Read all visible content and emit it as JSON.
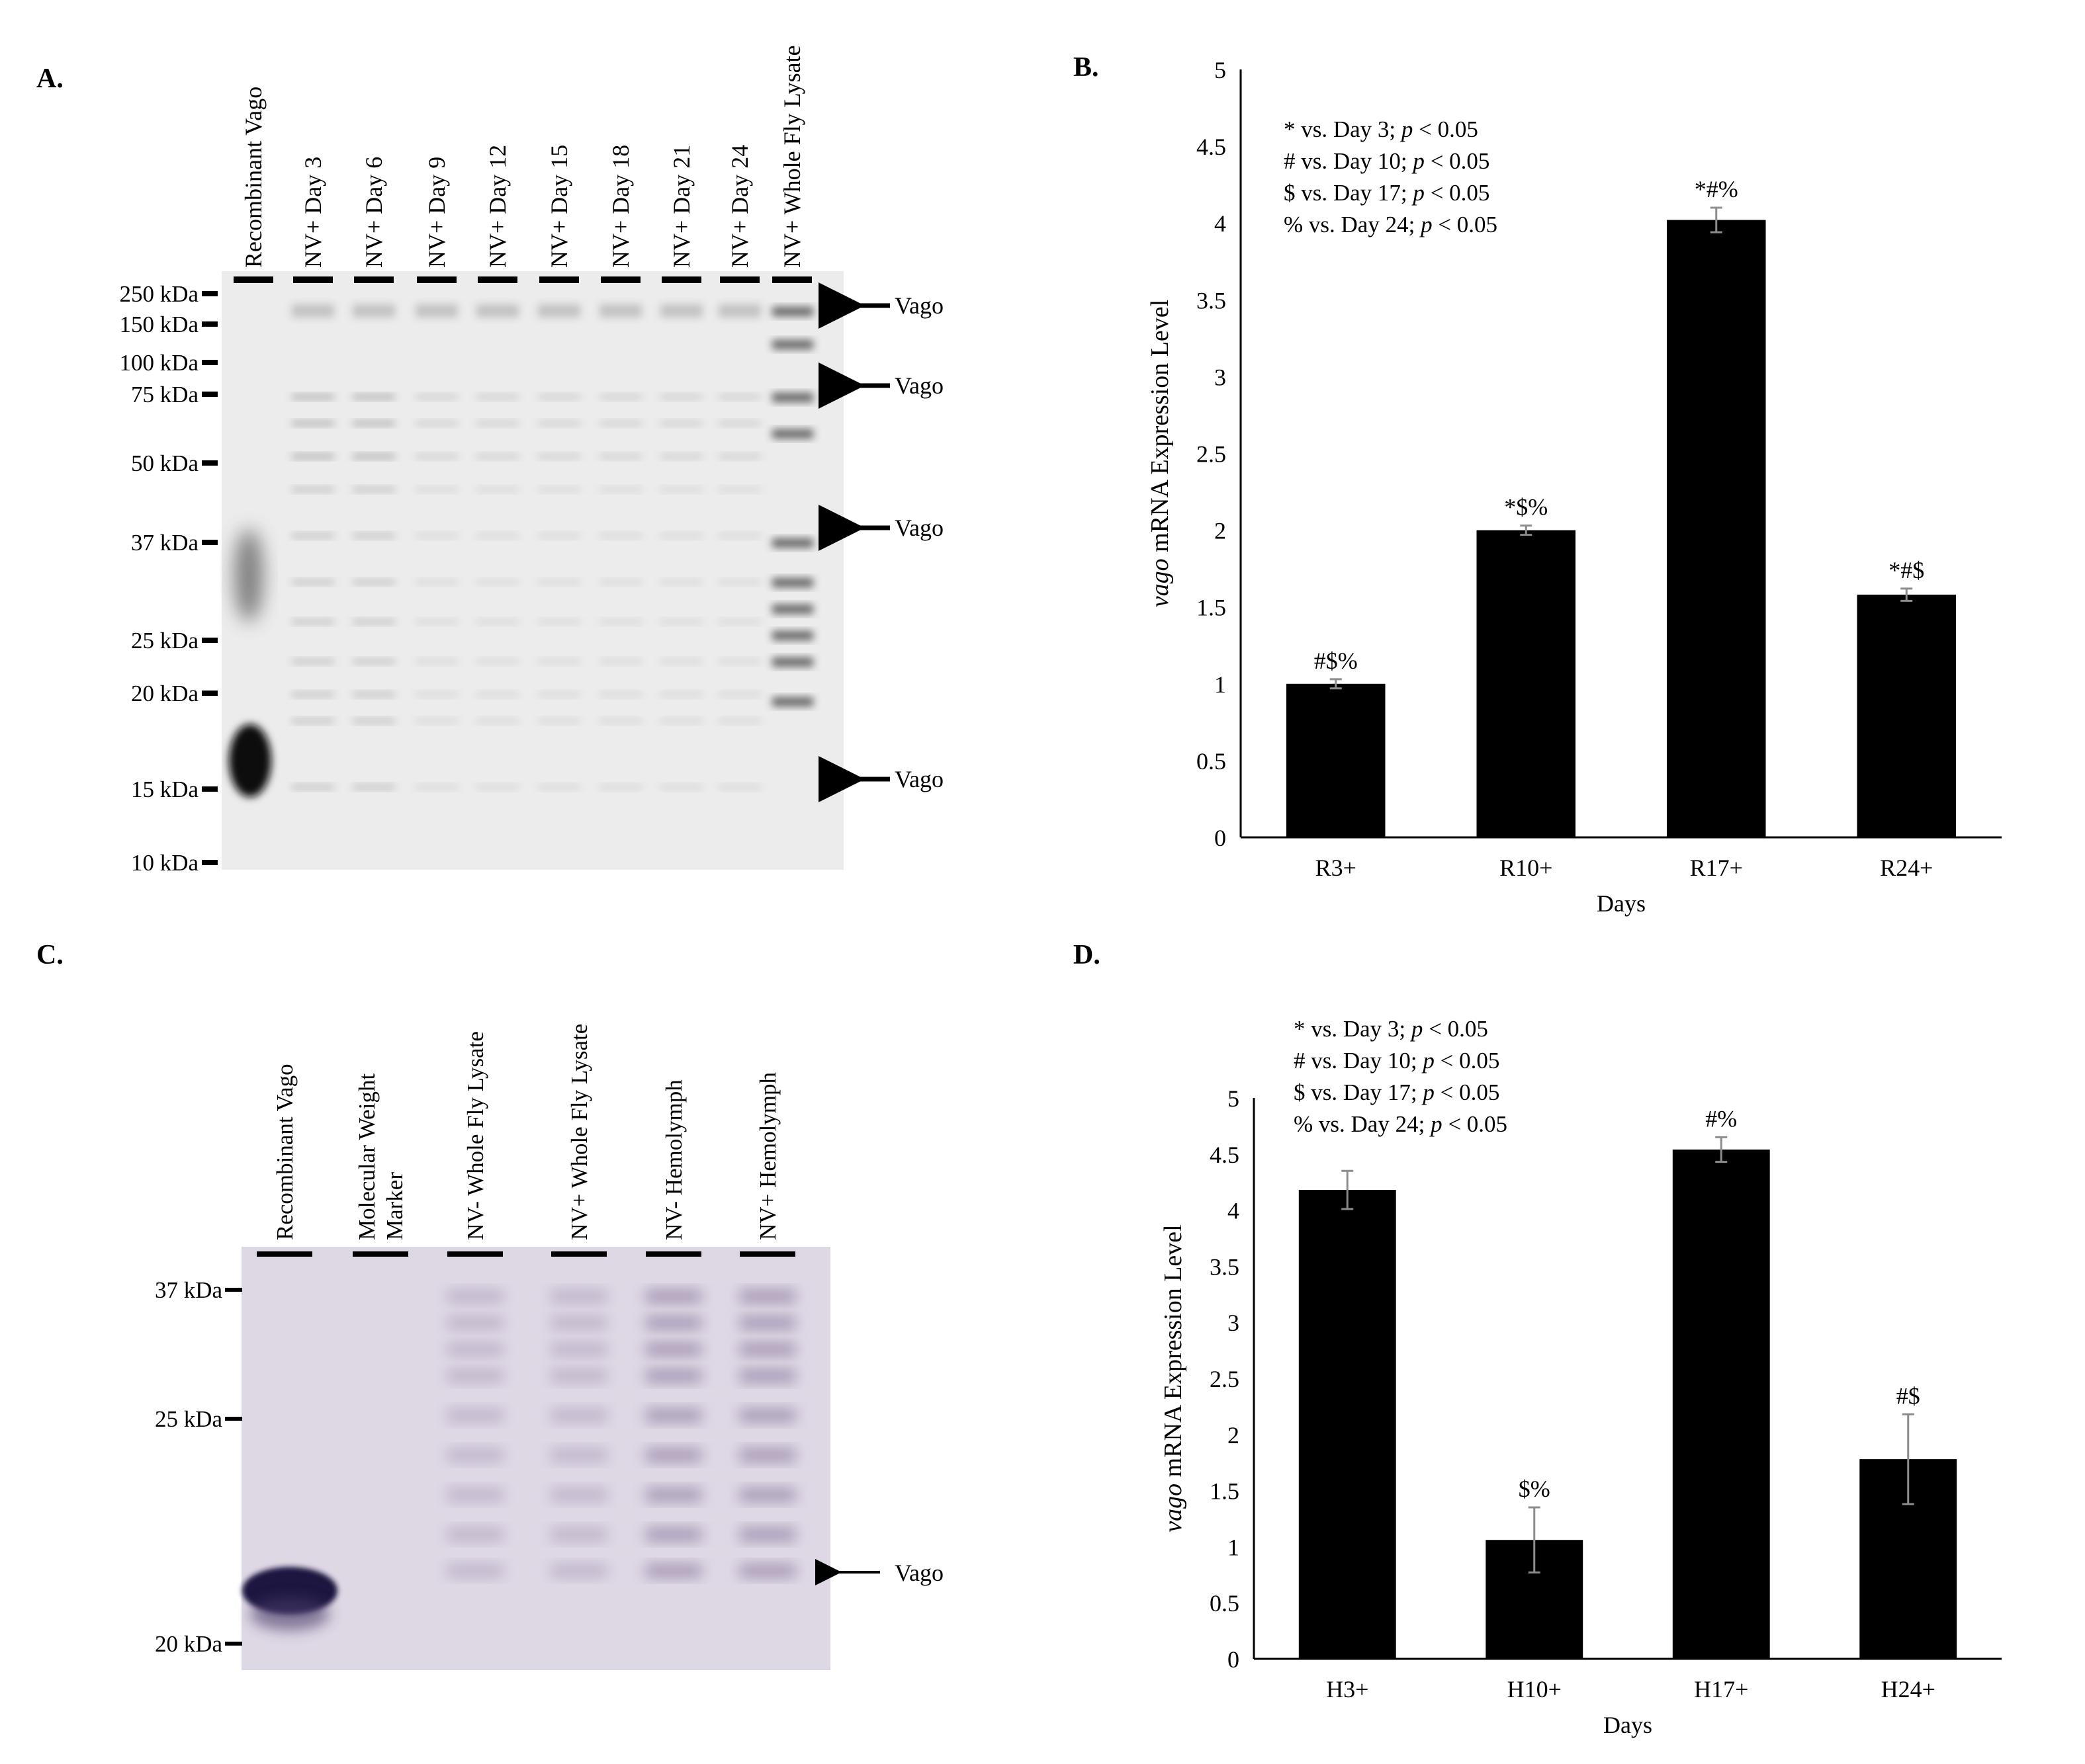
{
  "panel_labels": {
    "a": "A.",
    "b": "B.",
    "c": "C.",
    "d": "D."
  },
  "blot_a": {
    "lanes": [
      "Recombinant Vago",
      "NV+ Day 3",
      "NV+ Day 6",
      "NV+ Day 9",
      "NV+ Day 12",
      "NV+ Day 15",
      "NV+ Day 18",
      "NV+ Day 21",
      "NV+ Day 24",
      "NV+ Whole Fly Lysate"
    ],
    "markers": [
      "250 kDa",
      "150 kDa",
      "100 kDa",
      "75 kDa",
      "50 kDa",
      "37 kDa",
      "25 kDa",
      "20 kDa",
      "15 kDa",
      "10 kDa"
    ],
    "arrow_label": "Vago",
    "arrow_count": 4
  },
  "blot_c": {
    "lanes": [
      "Recombinant Vago",
      "Molecular Weight\nMarker",
      "NV- Whole Fly Lysate",
      "NV+ Whole Fly Lysate",
      "NV- Hemolymph",
      "NV+ Hemolymph"
    ],
    "markers": [
      "37 kDa",
      "25 kDa",
      "20 kDa"
    ],
    "arrow_label": "Vago",
    "arrow_count": 1
  },
  "legend_notes": [
    {
      "symbol": "*",
      "text": "vs. Day 3;",
      "p": "p",
      "thresh": "< 0.05"
    },
    {
      "symbol": "#",
      "text": "vs. Day 10;",
      "p": "p",
      "thresh": "< 0.05"
    },
    {
      "symbol": "$",
      "text": "vs. Day 17;",
      "p": "p",
      "thresh": "< 0.05"
    },
    {
      "symbol": "%",
      "text": "vs. Day 24;",
      "p": "p",
      "thresh": "< 0.05"
    }
  ],
  "chart_data": [
    {
      "type": "bar",
      "panel": "B.",
      "categories": [
        "R3+",
        "R10+",
        "R17+",
        "R24+"
      ],
      "values": [
        1.0,
        2.0,
        4.02,
        1.58
      ],
      "errors": [
        0.03,
        0.03,
        0.08,
        0.04
      ],
      "annotations": [
        "#$%",
        "*$%",
        "*#%",
        "*#$"
      ],
      "xlabel": "Days",
      "ylabel_italic": "vago",
      "ylabel_rest": " mRNA Expression Level",
      "ylim": [
        0,
        5
      ],
      "yticks": [
        "0",
        "0.5",
        "1",
        "1.5",
        "2",
        "2.5",
        "3",
        "3.5",
        "4",
        "4.5",
        "5"
      ],
      "bar_color": "#000000",
      "error_color": "#8c8c8c"
    },
    {
      "type": "bar",
      "panel": "D.",
      "categories": [
        "H3+",
        "H10+",
        "H17+",
        "H24+"
      ],
      "values": [
        4.18,
        1.06,
        4.54,
        1.78
      ],
      "errors": [
        0.17,
        0.29,
        0.11,
        0.4
      ],
      "annotations": [
        "",
        "$%",
        "#%",
        "#$"
      ],
      "xlabel": "Days",
      "ylabel_italic": "vago",
      "ylabel_rest": " mRNA Expression Level",
      "ylim": [
        0,
        5
      ],
      "yticks": [
        "0",
        "0.5",
        "1",
        "1.5",
        "2",
        "2.5",
        "3",
        "3.5",
        "4",
        "4.5",
        "5"
      ],
      "bar_color": "#000000",
      "error_color": "#8c8c8c"
    }
  ]
}
